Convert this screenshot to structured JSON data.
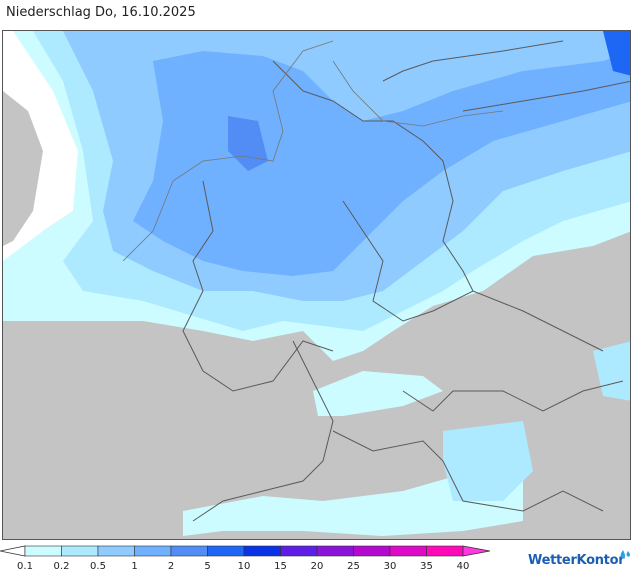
{
  "header": {
    "title": "Niederschlag Do, 16.10.2025"
  },
  "legend": {
    "ticks": [
      "0.1",
      "0.2",
      "0.5",
      "1",
      "2",
      "5",
      "10",
      "15",
      "20",
      "25",
      "30",
      "35",
      "40"
    ],
    "colors": [
      "#ffffff",
      "#ccfcff",
      "#adeaff",
      "#8fcbff",
      "#6fb0ff",
      "#528df5",
      "#1e67f5",
      "#0a32e6",
      "#5e1ee6",
      "#8a14d8",
      "#b40ad0",
      "#de0ac8",
      "#ff0aba",
      "#ff39e0"
    ]
  },
  "branding": {
    "name": "WetterKontor"
  },
  "colors": {
    "land": "#c4c4c4",
    "sea": "#ffffff",
    "borders": "#5a5a5a"
  }
}
